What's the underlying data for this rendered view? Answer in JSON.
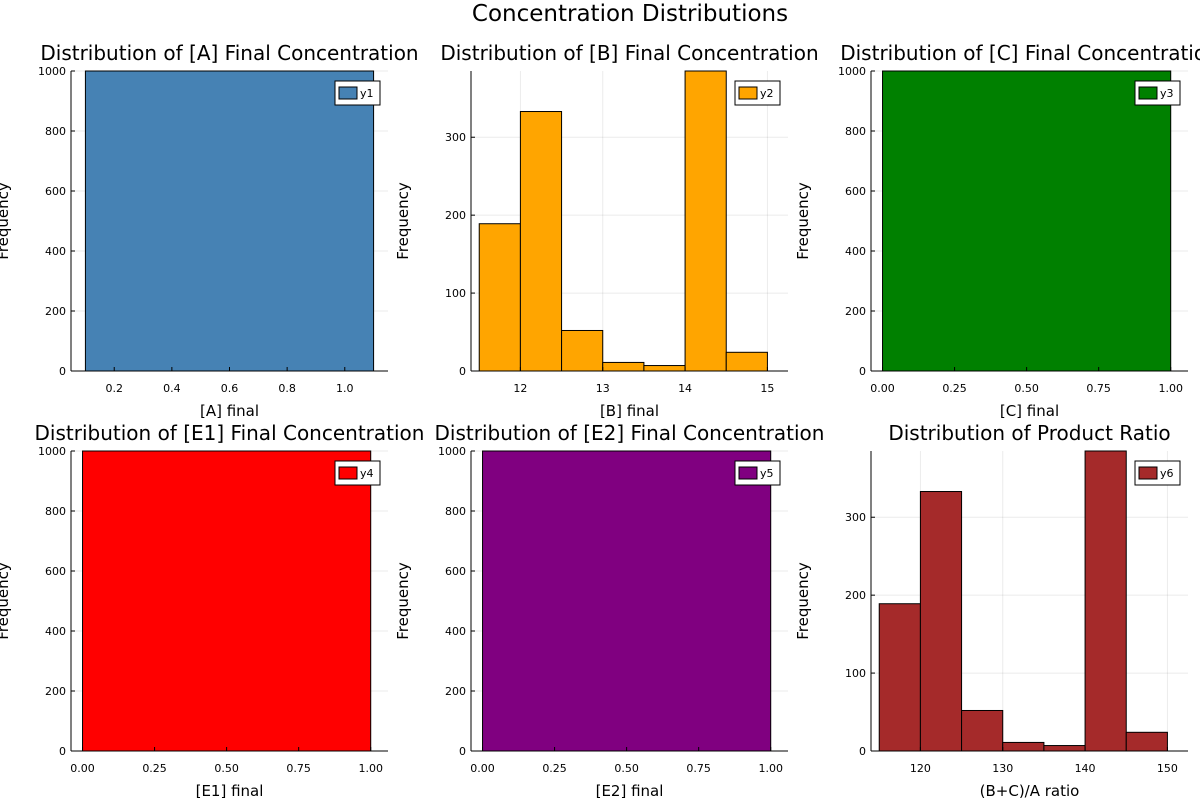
{
  "figure_title": "Concentration Distributions",
  "chart_data": [
    {
      "type": "bar",
      "title": "Distribution of [A] Final Concentration",
      "xlabel": "[A] final",
      "ylabel": "Frequency",
      "xlim": [
        0.05,
        1.15
      ],
      "ylim": [
        0,
        1000
      ],
      "xticks": [
        0.2,
        0.4,
        0.6,
        0.8,
        1.0
      ],
      "xtick_labels": [
        "0.2",
        "0.4",
        "0.6",
        "0.8",
        "1.0"
      ],
      "yticks": [
        0,
        200,
        400,
        600,
        800,
        1000
      ],
      "bins": [
        {
          "x0": 0.1,
          "x1": 1.1,
          "count": 1000
        }
      ],
      "color": "#4682b4",
      "legend": "y1",
      "legend_position": "top-right",
      "grid": true
    },
    {
      "type": "bar",
      "title": "Distribution of [B] Final Concentration",
      "xlabel": "[B] final",
      "ylabel": "Frequency",
      "xlim": [
        11.4,
        15.25
      ],
      "ylim": [
        0,
        385
      ],
      "xticks": [
        12,
        13,
        14,
        15
      ],
      "xtick_labels": [
        "12",
        "13",
        "14",
        "15"
      ],
      "yticks": [
        0,
        100,
        200,
        300
      ],
      "bins": [
        {
          "x0": 11.5,
          "x1": 12.0,
          "count": 189
        },
        {
          "x0": 12.0,
          "x1": 12.5,
          "count": 333
        },
        {
          "x0": 12.5,
          "x1": 13.0,
          "count": 52
        },
        {
          "x0": 13.0,
          "x1": 13.5,
          "count": 11
        },
        {
          "x0": 13.5,
          "x1": 14.0,
          "count": 7
        },
        {
          "x0": 14.0,
          "x1": 14.5,
          "count": 385
        },
        {
          "x0": 14.5,
          "x1": 15.0,
          "count": 24
        }
      ],
      "color": "#ffa500",
      "legend": "y2",
      "legend_position": "top-right",
      "grid": true
    },
    {
      "type": "bar",
      "title": "Distribution of [C] Final Concentration",
      "xlabel": "[C] final",
      "ylabel": "Frequency",
      "xlim": [
        -0.04,
        1.06
      ],
      "ylim": [
        0,
        1000
      ],
      "xticks": [
        0,
        0.25,
        0.5,
        0.75,
        1.0
      ],
      "xtick_labels": [
        "0.00",
        "0.25",
        "0.50",
        "0.75",
        "1.00"
      ],
      "yticks": [
        0,
        200,
        400,
        600,
        800,
        1000
      ],
      "bins": [
        {
          "x0": 0,
          "x1": 1,
          "count": 1000
        }
      ],
      "color": "#008000",
      "legend": "y3",
      "legend_position": "top-right",
      "grid": true
    },
    {
      "type": "bar",
      "title": "Distribution of [E1] Final Concentration",
      "xlabel": "[E1] final",
      "ylabel": "Frequency",
      "xlim": [
        -0.04,
        1.06
      ],
      "ylim": [
        0,
        1000
      ],
      "xticks": [
        0,
        0.25,
        0.5,
        0.75,
        1.0
      ],
      "xtick_labels": [
        "0.00",
        "0.25",
        "0.50",
        "0.75",
        "1.00"
      ],
      "yticks": [
        0,
        200,
        400,
        600,
        800,
        1000
      ],
      "bins": [
        {
          "x0": 0,
          "x1": 1,
          "count": 1000
        }
      ],
      "color": "#ff0000",
      "legend": "y4",
      "legend_position": "top-right",
      "grid": true
    },
    {
      "type": "bar",
      "title": "Distribution of [E2] Final Concentration",
      "xlabel": "[E2] final",
      "ylabel": "Frequency",
      "xlim": [
        -0.04,
        1.06
      ],
      "ylim": [
        0,
        1000
      ],
      "xticks": [
        0,
        0.25,
        0.5,
        0.75,
        1.0
      ],
      "xtick_labels": [
        "0.00",
        "0.25",
        "0.50",
        "0.75",
        "1.00"
      ],
      "yticks": [
        0,
        200,
        400,
        600,
        800,
        1000
      ],
      "bins": [
        {
          "x0": 0,
          "x1": 1,
          "count": 1000
        }
      ],
      "color": "#800080",
      "legend": "y5",
      "legend_position": "top-right",
      "grid": true
    },
    {
      "type": "bar",
      "title": "Distribution of Product Ratio",
      "xlabel": "(B+C)/A ratio",
      "ylabel": "Frequency",
      "xlim": [
        114,
        152.5
      ],
      "ylim": [
        0,
        385
      ],
      "xticks": [
        120,
        130,
        140,
        150
      ],
      "xtick_labels": [
        "120",
        "130",
        "140",
        "150"
      ],
      "yticks": [
        0,
        100,
        200,
        300
      ],
      "bins": [
        {
          "x0": 115,
          "x1": 120,
          "count": 189
        },
        {
          "x0": 120,
          "x1": 125,
          "count": 333
        },
        {
          "x0": 125,
          "x1": 130,
          "count": 52
        },
        {
          "x0": 130,
          "x1": 135,
          "count": 11
        },
        {
          "x0": 135,
          "x1": 140,
          "count": 7
        },
        {
          "x0": 140,
          "x1": 145,
          "count": 385
        },
        {
          "x0": 145,
          "x1": 150,
          "count": 24
        }
      ],
      "color": "#a52a2a",
      "legend": "y6",
      "legend_position": "top-right",
      "grid": true
    }
  ]
}
